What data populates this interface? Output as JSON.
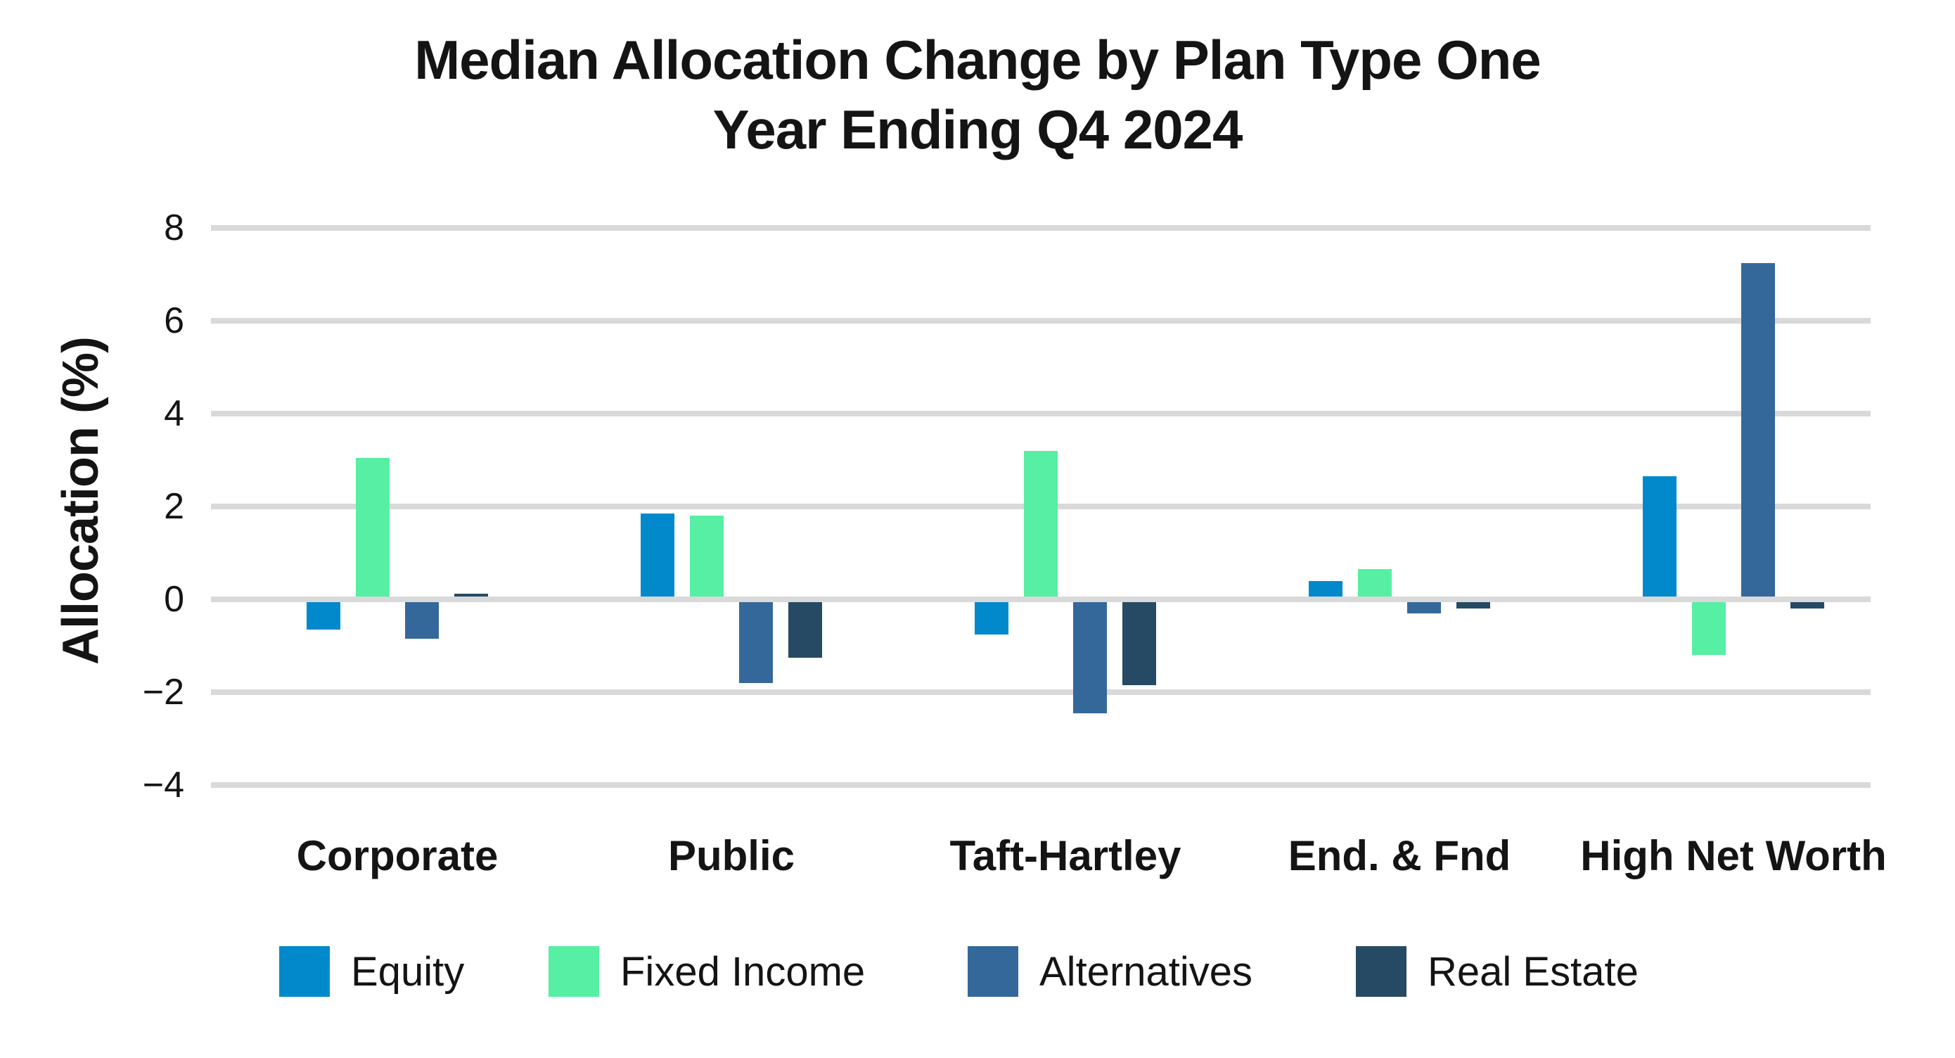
{
  "chart_data": {
    "type": "bar",
    "title_lines": [
      "Median Allocation Change by Plan Type One",
      "Year Ending Q4 2024"
    ],
    "ylabel": "Allocation (%)",
    "categories": [
      "Corporate",
      "Public",
      "Taft-Hartley",
      "End. & Fnd",
      "High Net Worth"
    ],
    "series": [
      {
        "name": "Equity",
        "color": "#0189CB",
        "values": [
          -0.65,
          1.85,
          -0.75,
          0.4,
          2.65
        ]
      },
      {
        "name": "Fixed Income",
        "color": "#56EFA3",
        "values": [
          3.05,
          1.8,
          3.2,
          0.65,
          -1.2
        ]
      },
      {
        "name": "Alternatives",
        "color": "#35689A",
        "values": [
          -0.85,
          -1.8,
          -2.45,
          -0.3,
          7.25
        ]
      },
      {
        "name": "Real Estate",
        "color": "#264A63",
        "values": [
          0.1,
          -1.25,
          -1.85,
          -0.2,
          -0.2
        ]
      }
    ],
    "y_ticks": [
      {
        "value": 8,
        "label": "8"
      },
      {
        "value": 6,
        "label": "6"
      },
      {
        "value": 4,
        "label": "4"
      },
      {
        "value": 2,
        "label": "2"
      },
      {
        "value": 0,
        "label": "0"
      },
      {
        "value": -2,
        "label": "−2"
      },
      {
        "value": -4,
        "label": "−4"
      }
    ],
    "ylim": [
      -4,
      8
    ],
    "grid": true,
    "grid_color": "#D9D9D9",
    "text_color": "#141414",
    "background": "#FFFFFF",
    "legend_position": "bottom"
  }
}
